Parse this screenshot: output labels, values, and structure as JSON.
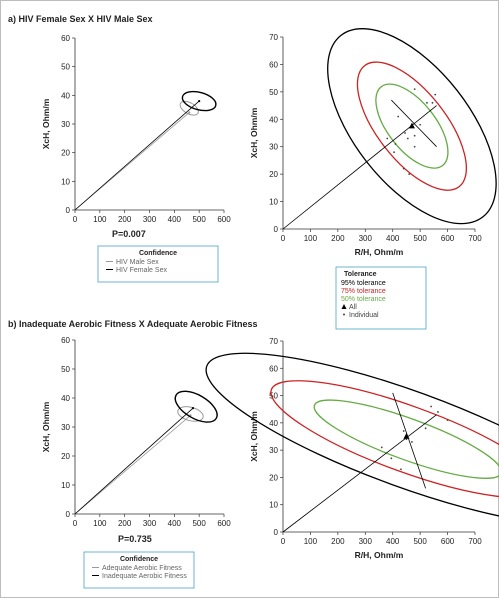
{
  "panels": [
    {
      "label": "a) HIV Female Sex X HIV Male Sex"
    },
    {
      "label": "b) Inadequate Aerobic Fitness X Adequate Aerobic Fitness"
    }
  ],
  "colors": {
    "black": "#000000",
    "gray": "#999999",
    "red": "#cc2222",
    "green": "#66aa44",
    "tick": "#222222"
  },
  "chart_data": [
    {
      "id": "a-left",
      "type": "line",
      "subtype": "confidence-ellipses",
      "xlabel": "",
      "ylabel": "XcH, Ohm/m",
      "xlim": [
        0,
        600
      ],
      "ylim": [
        0,
        60
      ],
      "xticks": [
        0,
        100,
        200,
        300,
        400,
        500,
        600
      ],
      "yticks": [
        0,
        10,
        20,
        30,
        40,
        50,
        60
      ],
      "series": [
        {
          "name": "HIV Male Sex",
          "color": "#999999",
          "line_to": [
            460,
            34
          ],
          "ellipse": {
            "cx": 460,
            "cy": 35.5,
            "rx": 22,
            "ry": 3.5,
            "angle": -60
          }
        },
        {
          "name": "HIV Female Sex",
          "color": "#000000",
          "line_to": [
            500,
            38
          ],
          "ellipse": {
            "cx": 500,
            "cy": 38,
            "rx": 35,
            "ry": 6,
            "angle": -75
          }
        }
      ],
      "annotation": "P=0.007",
      "legend": {
        "title": "Confidence",
        "items": [
          "HIV Male Sex",
          "HIV Female Sex"
        ]
      }
    },
    {
      "id": "a-right",
      "type": "scatter",
      "subtype": "tolerance-ellipses",
      "xlabel": "R/H, Ohm/m",
      "ylabel": "XcH, Ohm/m",
      "xlim": [
        0,
        700
      ],
      "ylim": [
        0,
        70
      ],
      "xticks": [
        0,
        100,
        200,
        300,
        400,
        500,
        600,
        700
      ],
      "yticks": [
        0,
        10,
        20,
        30,
        40,
        50,
        60,
        70
      ],
      "mean": [
        470,
        37.5
      ],
      "ellipses": [
        {
          "name": "95% tolerance",
          "color": "#000000",
          "cx": 470,
          "cy": 37.5,
          "a": 210,
          "b": 15,
          "angle": 38
        },
        {
          "name": "75% tolerance",
          "color": "#cc2222",
          "cx": 470,
          "cy": 37.5,
          "a": 125,
          "b": 10,
          "angle": 38
        },
        {
          "name": "50% tolerance",
          "color": "#66aa44",
          "cx": 470,
          "cy": 37.5,
          "a": 87,
          "b": 6.5,
          "angle": 38
        }
      ],
      "axes_lines": [
        [
          [
            0,
            0
          ],
          [
            560,
            45
          ]
        ],
        [
          [
            395,
            47
          ],
          [
            560,
            30
          ]
        ]
      ],
      "points": [
        [
          480,
          51
        ],
        [
          555,
          49
        ],
        [
          545,
          46
        ],
        [
          525,
          46
        ],
        [
          380,
          33
        ],
        [
          420,
          41
        ],
        [
          445,
          35
        ],
        [
          455,
          33
        ],
        [
          480,
          30
        ],
        [
          410,
          31
        ],
        [
          480,
          34
        ],
        [
          440,
          22
        ],
        [
          460,
          20
        ],
        [
          405,
          28
        ],
        [
          500,
          38
        ]
      ],
      "legend": {
        "title": "Tolerance",
        "items": [
          "95% tolerance",
          "75% tolerance",
          "50% tolerance",
          "All",
          "Individual"
        ]
      }
    },
    {
      "id": "b-left",
      "type": "line",
      "subtype": "confidence-ellipses",
      "xlabel": "",
      "ylabel": "XcH, Ohm/m",
      "xlim": [
        0,
        600
      ],
      "ylim": [
        0,
        60
      ],
      "xticks": [
        0,
        100,
        200,
        300,
        400,
        500,
        600
      ],
      "yticks": [
        0,
        10,
        20,
        30,
        40,
        50,
        60
      ],
      "series": [
        {
          "name": "Adequate Aerobic Fitness",
          "color": "#999999",
          "line_to": [
            465,
            34
          ],
          "ellipse": {
            "cx": 465,
            "cy": 34.5,
            "rx": 27,
            "ry": 4.5,
            "angle": -75
          }
        },
        {
          "name": "Inadequate Aerobic Fitness",
          "color": "#000000",
          "line_to": [
            475,
            36.5
          ],
          "ellipse": {
            "cx": 488,
            "cy": 37,
            "rx": 47,
            "ry": 8,
            "angle": -60
          }
        }
      ],
      "annotation": "P=0.735",
      "legend": {
        "title": "Confidence",
        "items": [
          "Adequate Aerobic Fitness",
          "Inadequate Aerobic Fitness"
        ]
      }
    },
    {
      "id": "b-right",
      "type": "scatter",
      "subtype": "tolerance-ellipses",
      "xlabel": "R/H, Ohm/m",
      "ylabel": "XcH, Ohm/m",
      "xlim": [
        0,
        700
      ],
      "ylim": [
        0,
        70
      ],
      "xticks": [
        0,
        100,
        200,
        300,
        400,
        500,
        600,
        700
      ],
      "yticks": [
        0,
        10,
        20,
        30,
        40,
        50,
        60,
        70
      ],
      "mean": [
        450,
        35
      ],
      "ellipses": [
        {
          "name": "95% tolerance",
          "color": "#000000",
          "cx": 455,
          "cy": 34,
          "a": 175,
          "b": 28,
          "angle": 70
        },
        {
          "name": "75% tolerance",
          "color": "#cc2222",
          "cx": 455,
          "cy": 34,
          "a": 120,
          "b": 19,
          "angle": 70
        },
        {
          "name": "50% tolerance",
          "color": "#66aa44",
          "cx": 455,
          "cy": 34,
          "a": 75,
          "b": 13,
          "angle": 70
        }
      ],
      "axes_lines": [
        [
          [
            0,
            0
          ],
          [
            560,
            43
          ]
        ],
        [
          [
            400,
            51
          ],
          [
            520,
            16
          ]
        ]
      ],
      "points": [
        [
          440,
          37
        ],
        [
          450,
          34
        ],
        [
          455,
          35
        ],
        [
          395,
          27
        ],
        [
          430,
          23
        ],
        [
          360,
          31
        ],
        [
          565,
          44
        ],
        [
          540,
          46
        ],
        [
          520,
          38
        ],
        [
          600,
          41
        ],
        [
          470,
          33
        ]
      ],
      "legend": null
    }
  ]
}
